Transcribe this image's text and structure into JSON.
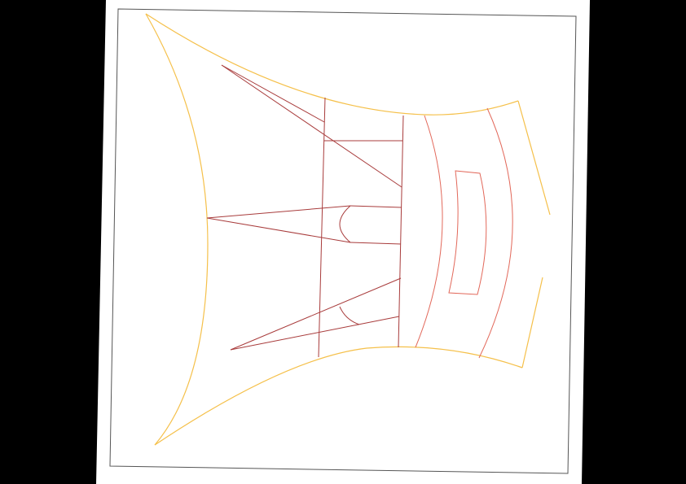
{
  "colors": {
    "background": "#000000",
    "sheet": "#ffffff",
    "frame": "#555555",
    "outer_outline": "#f5c04a",
    "inner_outline_dark": "#a83b3b",
    "inner_outline_light": "#e2685a"
  },
  "drawing": {
    "type": "line-drawing",
    "description_visible_text": ""
  }
}
